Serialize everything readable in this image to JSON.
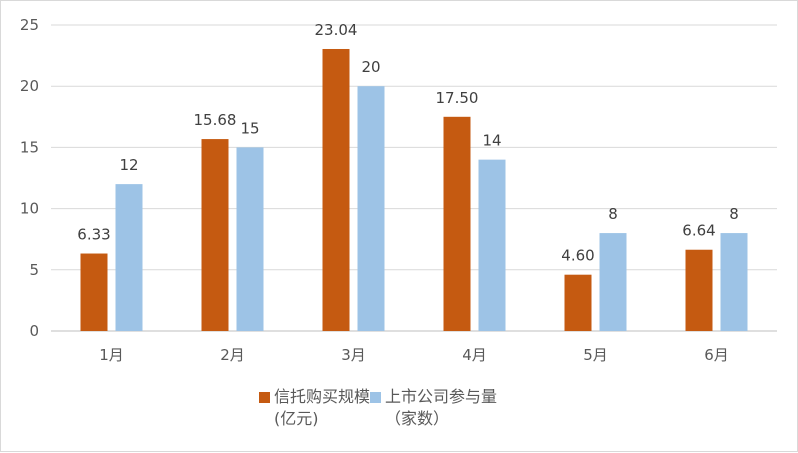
{
  "chart_data": {
    "type": "bar",
    "categories": [
      "1月",
      "2月",
      "3月",
      "4月",
      "5月",
      "6月"
    ],
    "series": [
      {
        "name": "信托购买规模\n(亿元)",
        "color": "#c55a11",
        "values": [
          6.33,
          15.68,
          23.04,
          17.5,
          4.6,
          6.64
        ],
        "labels": [
          "6.33",
          "15.68",
          "23.04",
          "17.50",
          "4.60",
          "6.64"
        ]
      },
      {
        "name": "上市公司参与量\n（家数）",
        "color": "#9dc3e6",
        "values": [
          12,
          15,
          20,
          14,
          8,
          8
        ],
        "labels": [
          "12",
          "15",
          "20",
          "14",
          "8",
          "8"
        ]
      }
    ],
    "ylim": [
      0,
      25
    ],
    "yticks": [
      0,
      5,
      10,
      15,
      20,
      25
    ],
    "grid": true,
    "legend_position": "bottom"
  }
}
